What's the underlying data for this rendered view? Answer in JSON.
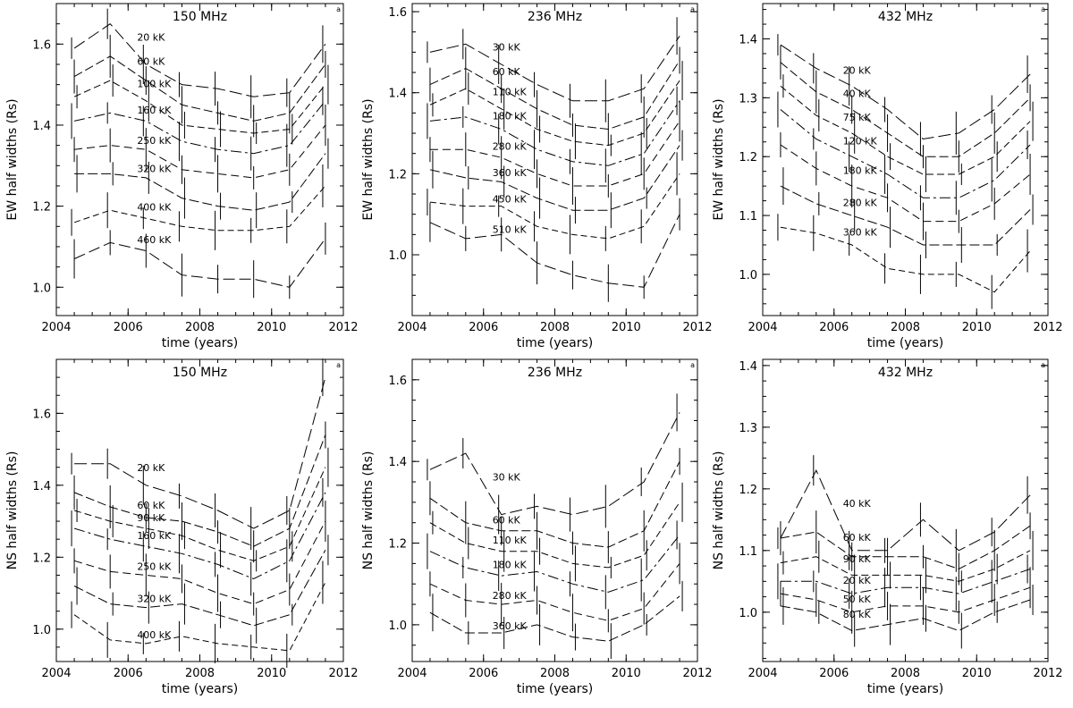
{
  "figure": {
    "background": "#ffffff",
    "ink": "#000000",
    "x_ticks": [
      2004,
      2006,
      2008,
      2010,
      2012
    ],
    "corner_marker": "a"
  },
  "chart_data": [
    {
      "type": "line",
      "title": "150 MHz",
      "xlabel": "time  (years)",
      "ylabel": "EW  half  widths  (Rs)",
      "xlim": [
        2004,
        2012
      ],
      "ylim": [
        0.93,
        1.7
      ],
      "yticks": [
        1.0,
        1.2,
        1.4,
        1.6
      ],
      "x": [
        2004.5,
        2005.5,
        2006.5,
        2007.5,
        2008.5,
        2009.5,
        2010.5,
        2011.5
      ],
      "series": [
        {
          "name": "20 kK",
          "values": [
            1.59,
            1.65,
            1.55,
            1.5,
            1.49,
            1.47,
            1.48,
            1.6
          ]
        },
        {
          "name": "60 kK",
          "values": [
            1.52,
            1.57,
            1.51,
            1.45,
            1.43,
            1.41,
            1.43,
            1.55
          ]
        },
        {
          "name": "100 kK",
          "values": [
            1.47,
            1.51,
            1.46,
            1.4,
            1.39,
            1.38,
            1.39,
            1.5
          ]
        },
        {
          "name": "160 kK",
          "values": [
            1.41,
            1.43,
            1.41,
            1.36,
            1.34,
            1.33,
            1.35,
            1.46
          ]
        },
        {
          "name": "250 kK",
          "values": [
            1.34,
            1.35,
            1.34,
            1.29,
            1.28,
            1.27,
            1.29,
            1.4
          ]
        },
        {
          "name": "320 kK",
          "values": [
            1.28,
            1.28,
            1.27,
            1.22,
            1.2,
            1.19,
            1.21,
            1.33
          ]
        },
        {
          "name": "400 kK",
          "values": [
            1.16,
            1.19,
            1.17,
            1.15,
            1.14,
            1.14,
            1.15,
            1.25
          ]
        },
        {
          "name": "460 kK",
          "values": [
            1.07,
            1.11,
            1.09,
            1.03,
            1.02,
            1.02,
            1.0,
            1.12
          ]
        }
      ]
    },
    {
      "type": "line",
      "title": "236 MHz",
      "xlabel": "time  (years)",
      "ylabel": "EW  half  widths  (Rs)",
      "xlim": [
        2004,
        2012
      ],
      "ylim": [
        0.85,
        1.62
      ],
      "yticks": [
        1.0,
        1.2,
        1.4,
        1.6
      ],
      "x": [
        2004.5,
        2005.5,
        2006.5,
        2007.5,
        2008.5,
        2009.5,
        2010.5,
        2011.5
      ],
      "series": [
        {
          "name": "30 kK",
          "values": [
            1.5,
            1.52,
            1.47,
            1.42,
            1.38,
            1.38,
            1.41,
            1.54
          ]
        },
        {
          "name": "60 kK",
          "values": [
            1.42,
            1.46,
            1.41,
            1.36,
            1.32,
            1.31,
            1.34,
            1.48
          ]
        },
        {
          "name": "110 kK",
          "values": [
            1.37,
            1.41,
            1.36,
            1.31,
            1.28,
            1.27,
            1.3,
            1.43
          ]
        },
        {
          "name": "180 kK",
          "values": [
            1.33,
            1.34,
            1.31,
            1.26,
            1.23,
            1.22,
            1.25,
            1.38
          ]
        },
        {
          "name": "280 kK",
          "values": [
            1.26,
            1.26,
            1.24,
            1.2,
            1.17,
            1.17,
            1.2,
            1.33
          ]
        },
        {
          "name": "360 kK",
          "values": [
            1.21,
            1.19,
            1.18,
            1.14,
            1.11,
            1.11,
            1.14,
            1.27
          ]
        },
        {
          "name": "450 kK",
          "values": [
            1.13,
            1.12,
            1.12,
            1.07,
            1.05,
            1.04,
            1.07,
            1.2
          ]
        },
        {
          "name": "510 kK",
          "values": [
            1.08,
            1.04,
            1.05,
            0.98,
            0.95,
            0.93,
            0.92,
            1.1
          ]
        }
      ]
    },
    {
      "type": "line",
      "title": "432 MHz",
      "xlabel": "time  (years)",
      "ylabel": "EW  half  widths  (Rs)",
      "xlim": [
        2004,
        2012
      ],
      "ylim": [
        0.93,
        1.46
      ],
      "yticks": [
        1.0,
        1.1,
        1.2,
        1.3,
        1.4
      ],
      "x": [
        2004.5,
        2005.5,
        2006.5,
        2007.5,
        2008.5,
        2009.5,
        2010.5,
        2011.5
      ],
      "series": [
        {
          "name": "20 kK",
          "values": [
            1.39,
            1.35,
            1.32,
            1.28,
            1.23,
            1.24,
            1.28,
            1.34
          ]
        },
        {
          "name": "40 kK",
          "values": [
            1.36,
            1.31,
            1.28,
            1.24,
            1.2,
            1.2,
            1.24,
            1.3
          ]
        },
        {
          "name": "75 kK",
          "values": [
            1.32,
            1.27,
            1.24,
            1.2,
            1.17,
            1.17,
            1.2,
            1.26
          ]
        },
        {
          "name": "120 kK",
          "values": [
            1.28,
            1.23,
            1.2,
            1.17,
            1.13,
            1.13,
            1.16,
            1.22
          ]
        },
        {
          "name": "180 kK",
          "values": [
            1.22,
            1.18,
            1.15,
            1.13,
            1.09,
            1.09,
            1.12,
            1.17
          ]
        },
        {
          "name": "280 kK",
          "values": [
            1.15,
            1.12,
            1.1,
            1.08,
            1.05,
            1.05,
            1.05,
            1.11
          ]
        },
        {
          "name": "360 kK",
          "values": [
            1.08,
            1.07,
            1.05,
            1.01,
            1.0,
            1.0,
            0.97,
            1.04
          ]
        }
      ]
    },
    {
      "type": "line",
      "title": "150 MHz",
      "xlabel": "time  (years)",
      "ylabel": "NS  half  widths  (Rs)",
      "xlim": [
        2004,
        2012
      ],
      "ylim": [
        0.91,
        1.75
      ],
      "yticks": [
        1.0,
        1.2,
        1.4,
        1.6
      ],
      "x": [
        2004.5,
        2005.5,
        2006.5,
        2007.5,
        2008.5,
        2009.5,
        2010.5,
        2011.5
      ],
      "series": [
        {
          "name": "20 kK",
          "values": [
            1.46,
            1.46,
            1.4,
            1.37,
            1.33,
            1.28,
            1.33,
            1.7
          ]
        },
        {
          "name": "60 kK",
          "values": [
            1.38,
            1.34,
            1.31,
            1.3,
            1.27,
            1.23,
            1.28,
            1.54
          ]
        },
        {
          "name": "90 kK",
          "values": [
            1.33,
            1.3,
            1.28,
            1.26,
            1.22,
            1.19,
            1.23,
            1.45
          ]
        },
        {
          "name": "160 kK",
          "values": [
            1.28,
            1.25,
            1.23,
            1.21,
            1.18,
            1.14,
            1.19,
            1.38
          ]
        },
        {
          "name": "250 kK",
          "values": [
            1.19,
            1.16,
            1.15,
            1.14,
            1.1,
            1.07,
            1.11,
            1.3
          ]
        },
        {
          "name": "320 kK",
          "values": [
            1.12,
            1.07,
            1.06,
            1.07,
            1.04,
            1.01,
            1.04,
            1.22
          ]
        },
        {
          "name": "400 kK",
          "values": [
            1.04,
            0.97,
            0.96,
            0.98,
            0.96,
            0.95,
            0.94,
            1.13
          ]
        }
      ]
    },
    {
      "type": "line",
      "title": "236 MHz",
      "xlabel": "time  (years)",
      "ylabel": "NS  half  widths  (Rs)",
      "xlim": [
        2004,
        2012
      ],
      "ylim": [
        0.91,
        1.65
      ],
      "yticks": [
        1.0,
        1.2,
        1.4,
        1.6
      ],
      "x": [
        2004.5,
        2005.5,
        2006.5,
        2007.5,
        2008.5,
        2009.5,
        2010.5,
        2011.5
      ],
      "series": [
        {
          "name": "30 kK",
          "values": [
            1.38,
            1.42,
            1.27,
            1.29,
            1.27,
            1.29,
            1.35,
            1.52
          ]
        },
        {
          "name": "60 kK",
          "values": [
            1.31,
            1.25,
            1.23,
            1.23,
            1.2,
            1.19,
            1.23,
            1.4
          ]
        },
        {
          "name": "110 kK",
          "values": [
            1.25,
            1.2,
            1.18,
            1.18,
            1.15,
            1.14,
            1.17,
            1.3
          ]
        },
        {
          "name": "180 kK",
          "values": [
            1.18,
            1.14,
            1.12,
            1.13,
            1.1,
            1.08,
            1.11,
            1.22
          ]
        },
        {
          "name": "280 kK",
          "values": [
            1.1,
            1.06,
            1.05,
            1.06,
            1.03,
            1.01,
            1.04,
            1.15
          ]
        },
        {
          "name": "360 kK",
          "values": [
            1.03,
            0.98,
            0.98,
            1.0,
            0.97,
            0.96,
            1.0,
            1.07
          ]
        }
      ]
    },
    {
      "type": "line",
      "title": "432 MHz",
      "xlabel": "time  (years)",
      "ylabel": "NS  half  widths  (Rs)",
      "xlim": [
        2004,
        2012
      ],
      "ylim": [
        0.92,
        1.41
      ],
      "yticks": [
        1.0,
        1.1,
        1.2,
        1.3,
        1.4
      ],
      "x": [
        2004.5,
        2005.5,
        2006.5,
        2007.5,
        2008.5,
        2009.5,
        2010.5,
        2011.5
      ],
      "series": [
        {
          "name": "40 kK",
          "values": [
            1.12,
            1.23,
            1.1,
            1.1,
            1.15,
            1.1,
            1.13,
            1.19
          ]
        },
        {
          "name": "60 kK",
          "values": [
            1.12,
            1.13,
            1.09,
            1.09,
            1.09,
            1.07,
            1.1,
            1.14
          ]
        },
        {
          "name": "90 kK",
          "values": [
            1.08,
            1.09,
            1.06,
            1.06,
            1.06,
            1.05,
            1.07,
            1.1
          ]
        },
        {
          "name": "20 kK",
          "values": [
            1.05,
            1.05,
            1.03,
            1.04,
            1.04,
            1.03,
            1.05,
            1.07
          ]
        },
        {
          "name": "50 kK",
          "values": [
            1.03,
            1.02,
            1.0,
            1.01,
            1.01,
            1.0,
            1.02,
            1.04
          ]
        },
        {
          "name": "80 kK",
          "values": [
            1.01,
            1.0,
            0.97,
            0.98,
            0.99,
            0.97,
            1.0,
            1.02
          ]
        }
      ]
    }
  ]
}
